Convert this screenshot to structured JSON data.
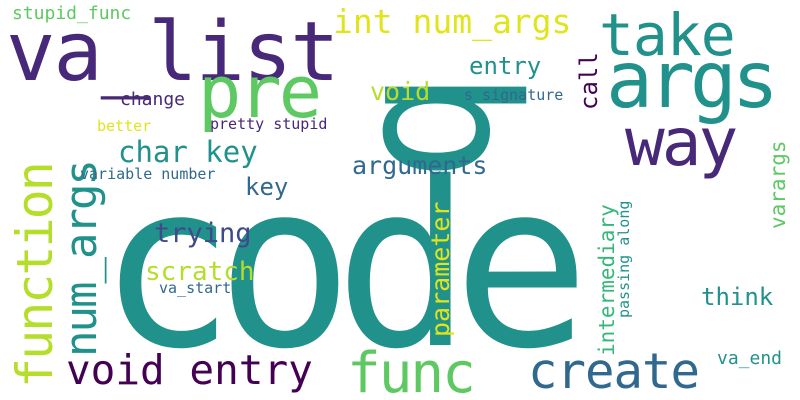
{
  "palette": {
    "teal": "#21918c",
    "purple": "#482878",
    "indigo": "#3e4a89",
    "blue": "#31688e",
    "green": "#35b779",
    "lightgreen": "#5ec962",
    "lime": "#b5de2b",
    "yellow": "#e0e51b",
    "darkpurple": "#440154"
  },
  "words": [
    {
      "id": "code",
      "text": "code",
      "color": "teal"
    },
    {
      "id": "q",
      "text": "q",
      "color": "teal"
    },
    {
      "id": "va-list",
      "text": "va_list",
      "color": "purple"
    },
    {
      "id": "args",
      "text": "args",
      "color": "teal"
    },
    {
      "id": "take",
      "text": "take",
      "color": "teal"
    },
    {
      "id": "pre",
      "text": "pre",
      "color": "lightgreen"
    },
    {
      "id": "way",
      "text": "way",
      "color": "purple"
    },
    {
      "id": "function",
      "text": "function",
      "color": "lime"
    },
    {
      "id": "num-args",
      "text": "num_args",
      "color": "teal"
    },
    {
      "id": "int-num-args",
      "text": "int num_args",
      "color": "yellow"
    },
    {
      "id": "stupid-func",
      "text": "stupid_func",
      "color": "lightgreen"
    },
    {
      "id": "entry",
      "text": "entry",
      "color": "teal"
    },
    {
      "id": "void",
      "text": "void",
      "color": "lime"
    },
    {
      "id": "signature",
      "text": "s signature",
      "color": "blue"
    },
    {
      "id": "call",
      "text": "call",
      "color": "darkpurple"
    },
    {
      "id": "change",
      "text": "change",
      "color": "purple"
    },
    {
      "id": "better",
      "text": "better",
      "color": "yellow"
    },
    {
      "id": "pretty-stupid",
      "text": "pretty stupid",
      "color": "purple"
    },
    {
      "id": "char-key",
      "text": "char key",
      "color": "teal"
    },
    {
      "id": "arguments",
      "text": "arguments",
      "color": "blue"
    },
    {
      "id": "variable-number",
      "text": "variable number",
      "color": "blue"
    },
    {
      "id": "key",
      "text": "key",
      "color": "blue"
    },
    {
      "id": "trying",
      "text": "trying",
      "color": "indigo"
    },
    {
      "id": "scratch",
      "text": "scratch",
      "color": "lime"
    },
    {
      "id": "va-start",
      "text": "va_start",
      "color": "blue"
    },
    {
      "id": "parameter",
      "text": "parameter",
      "color": "yellow"
    },
    {
      "id": "intermediary",
      "text": "intermediary",
      "color": "green"
    },
    {
      "id": "passing-along",
      "text": "passing along",
      "color": "teal"
    },
    {
      "id": "varargs",
      "text": "varargs",
      "color": "lightgreen"
    },
    {
      "id": "think",
      "text": "think",
      "color": "teal"
    },
    {
      "id": "va-end",
      "text": "va_end",
      "color": "teal"
    },
    {
      "id": "void-entry",
      "text": "void entry",
      "color": "darkpurple"
    },
    {
      "id": "func",
      "text": "func",
      "color": "lightgreen"
    },
    {
      "id": "create",
      "text": "create",
      "color": "blue"
    }
  ]
}
